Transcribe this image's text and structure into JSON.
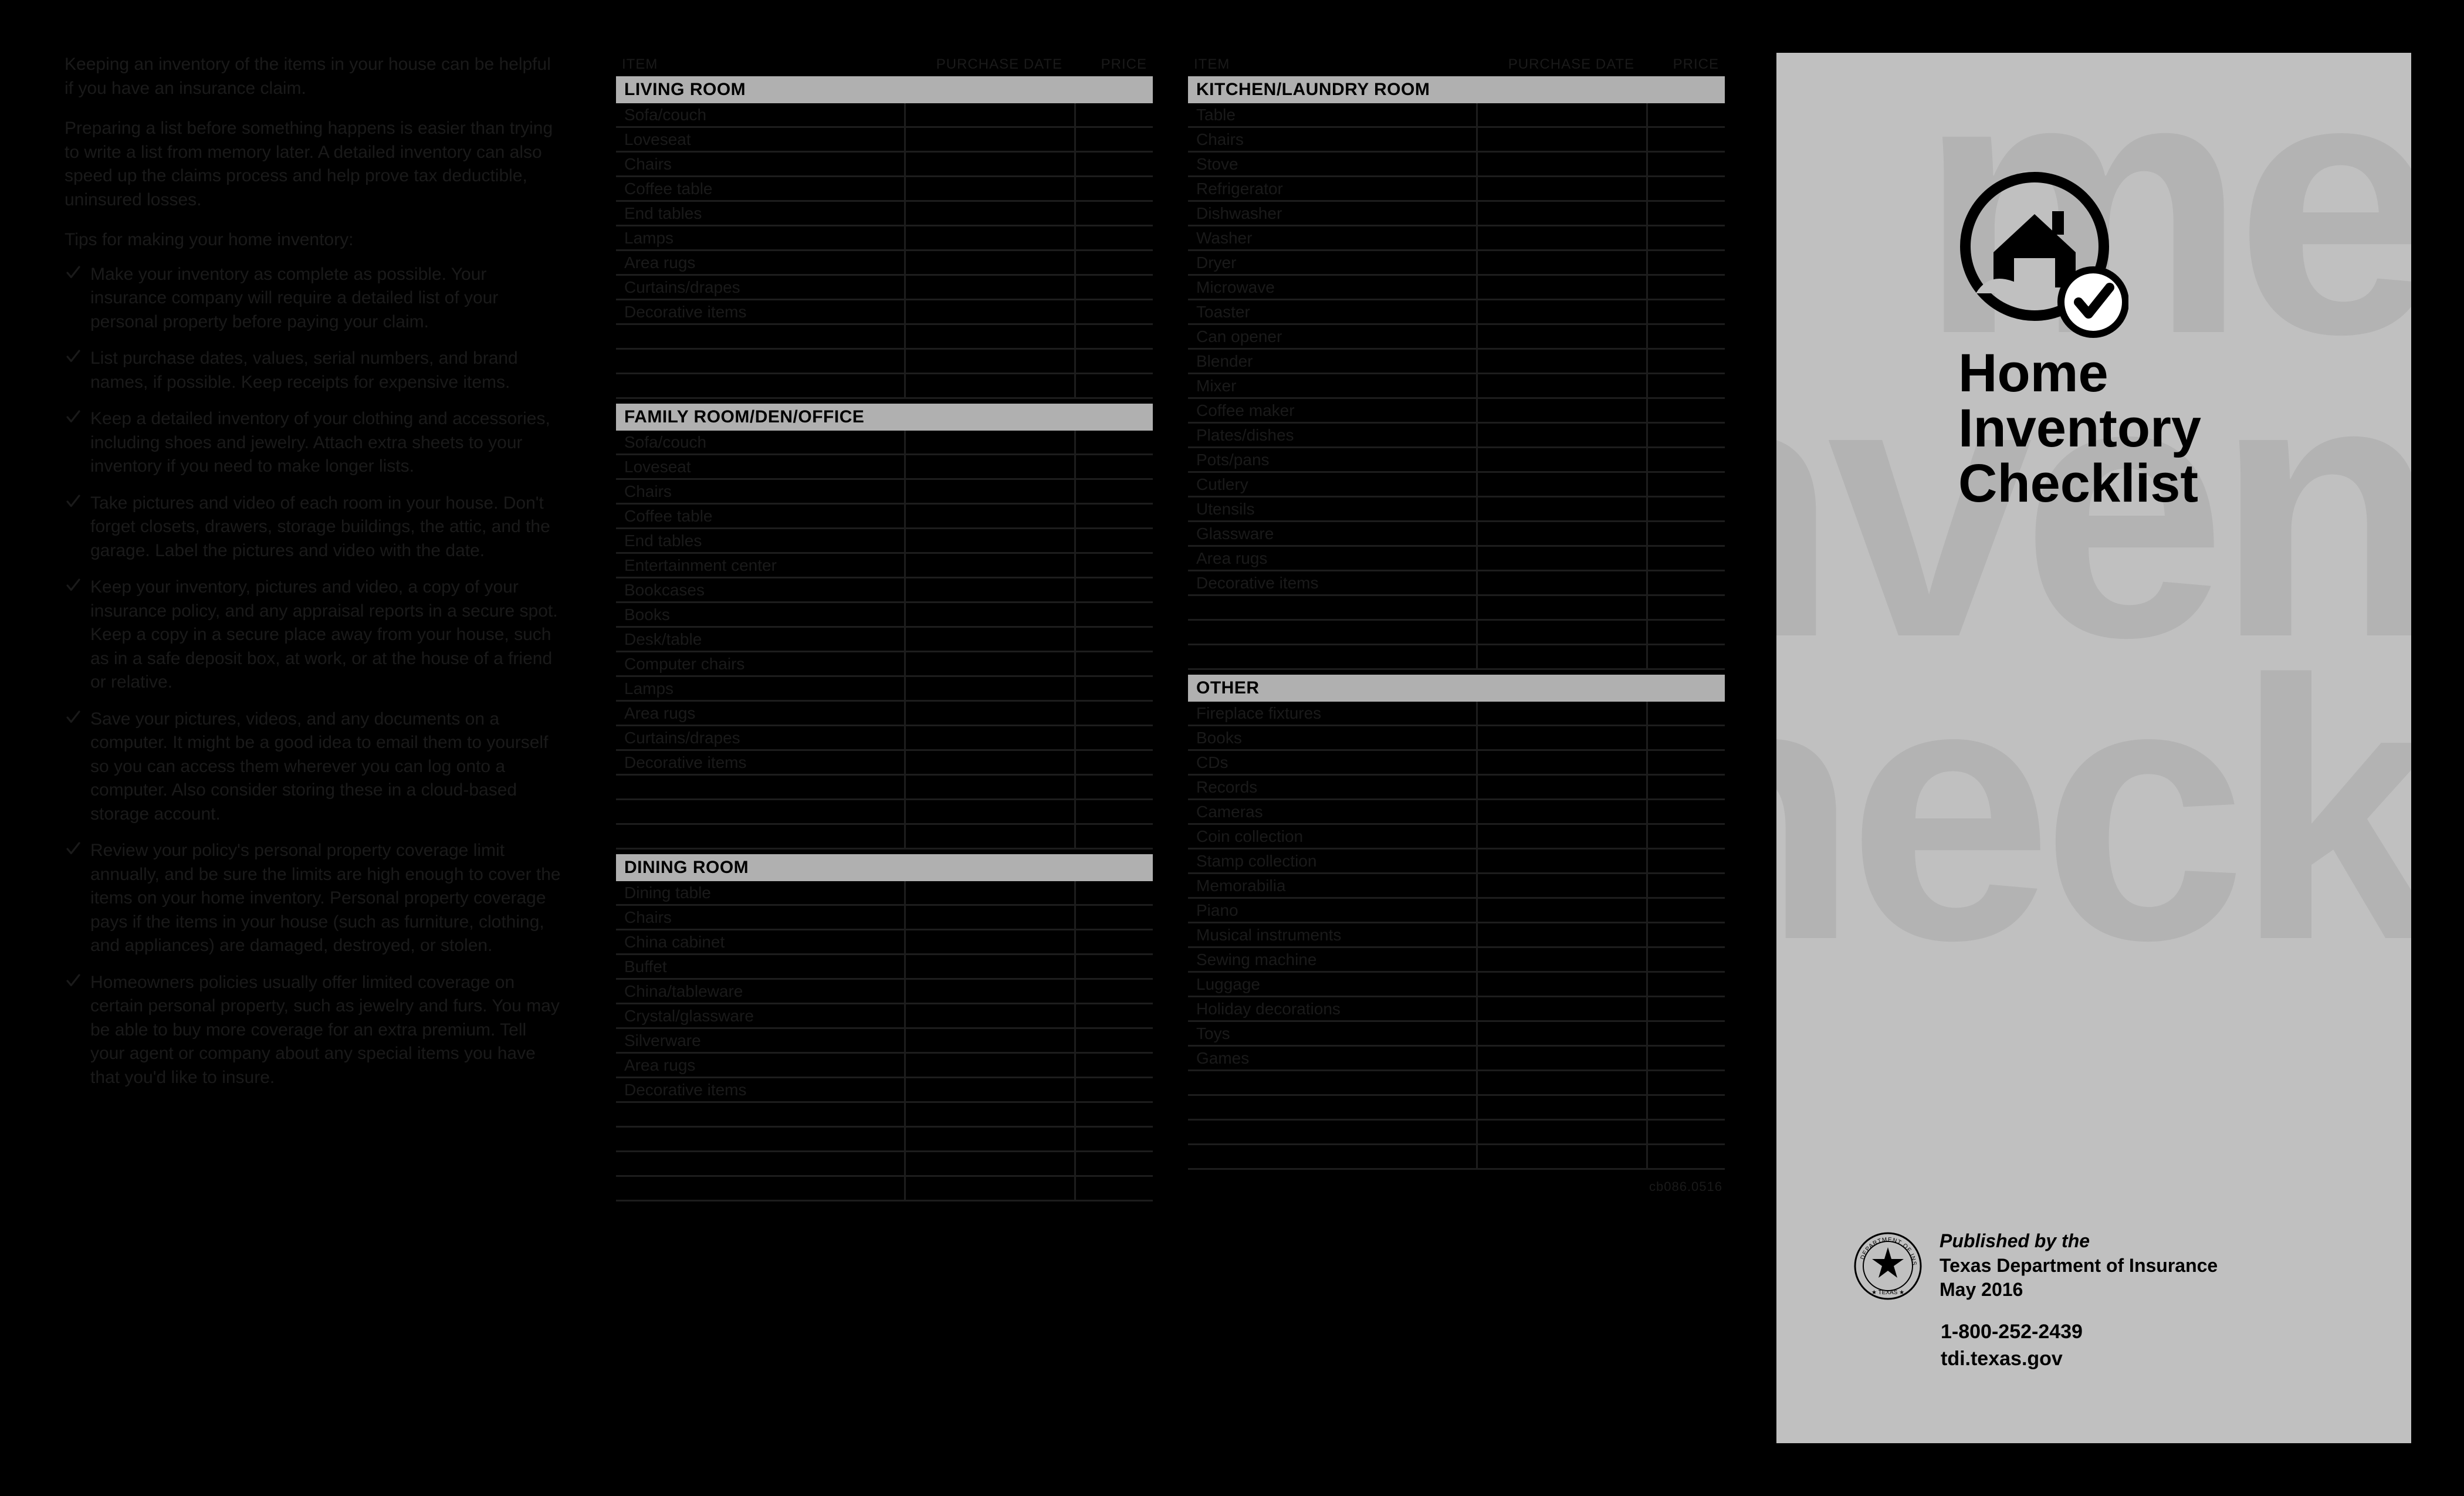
{
  "colors": {
    "page_bg": "#000000",
    "panel_cover_bg": "#c0c0c0",
    "cover_bg_text": "#b3b3b3",
    "section_head_bg": "#b0b0b0",
    "dim_text": "#1a1a1a",
    "row_border": "#1d1d1d"
  },
  "intro": {
    "p1": "Keeping an inventory of the items in your house can be helpful if you have an insurance claim.",
    "p2": "Preparing a list before something happens is easier than trying to write a list from memory later. A detailed inventory can also speed up the claims process and help prove tax deductible, uninsured losses.",
    "tips_heading": "Tips for making your home inventory:",
    "tips": [
      "Make your inventory as complete as possible. Your insurance company will require a detailed list of your personal property before paying your claim.",
      "List purchase dates, values, serial numbers, and brand names, if possible. Keep receipts for expensive items.",
      "Keep a detailed inventory of your clothing and accessories, including shoes and jewelry. Attach extra sheets to your inventory if you need to make longer lists.",
      "Take pictures and video of each room in your house. Don't forget closets, drawers, storage buildings, the attic, and the garage. Label the pictures and video with the date.",
      "Keep your inventory, pictures and video, a copy of your insurance policy, and any appraisal reports in a secure spot. Keep a copy in a secure place away from your house, such as in a safe deposit box, at work, or at the house of a friend or relative.",
      "Save your pictures, videos, and any documents on a computer. It might be a good idea to email them to yourself so you can access them wherever you can log onto a computer. Also consider storing these in a cloud-based storage account.",
      "Review your policy's personal property coverage limit annually, and be sure the limits are high enough to cover the items on your home inventory. Personal property coverage pays if the items in your house (such as furniture, clothing, and appliances) are damaged, destroyed, or stolen.",
      "Homeowners policies usually offer limited coverage on certain personal property, such as jewelry and furs. You may be able to buy more coverage for an extra premium. Tell your agent or company about any special items you have that you'd like to insure."
    ]
  },
  "table_headers": {
    "item": "ITEM",
    "date": "PURCHASE DATE",
    "price": "PRICE"
  },
  "panel2": [
    {
      "title": "LIVING ROOM",
      "items": [
        "Sofa/couch",
        "Loveseat",
        "Chairs",
        "Coffee table",
        "End tables",
        "Lamps",
        "Area rugs",
        "Curtains/drapes",
        "Decorative items"
      ],
      "blank_rows": 3
    },
    {
      "title": "FAMILY ROOM/DEN/OFFICE",
      "items": [
        "Sofa/couch",
        "Loveseat",
        "Chairs",
        "Coffee table",
        "End tables",
        "Entertainment center",
        "Bookcases",
        "Books",
        "Desk/table",
        "Computer chairs",
        "Lamps",
        "Area rugs",
        "Curtains/drapes",
        "Decorative items"
      ],
      "blank_rows": 3
    },
    {
      "title": "DINING ROOM",
      "items": [
        "Dining table",
        "Chairs",
        "China cabinet",
        "Buffet",
        "China/tableware",
        "Crystal/glassware",
        "Silverware",
        "Area rugs",
        "Decorative items"
      ],
      "blank_rows": 4
    }
  ],
  "panel3": [
    {
      "title": "KITCHEN/LAUNDRY ROOM",
      "items": [
        "Table",
        "Chairs",
        "Stove",
        "Refrigerator",
        "Dishwasher",
        "Washer",
        "Dryer",
        "Microwave",
        "Toaster",
        "Can opener",
        "Blender",
        "Mixer",
        "Coffee maker",
        "Plates/dishes",
        "Pots/pans",
        "Cutlery",
        "Utensils",
        "Glassware",
        "Area rugs",
        "Decorative items"
      ],
      "blank_rows": 3
    },
    {
      "title": "OTHER",
      "items": [
        "Fireplace fixtures",
        "Books",
        "CDs",
        "Records",
        "Cameras",
        "Coin collection",
        "Stamp collection",
        "Memorabilia",
        "Piano",
        "Musical instruments",
        "Sewing machine",
        "Luggage",
        "Holiday decorations",
        "Toys",
        "Games"
      ],
      "blank_rows": 4
    }
  ],
  "doc_id": "cb086.0516",
  "cover": {
    "bg_text_l1": "me",
    "bg_text_l2": "Inven",
    "bg_text_l3": "Check",
    "title_l1": "Home",
    "title_l2": "Inventory",
    "title_l3": "Checklist",
    "pub_l1": "Published by the",
    "pub_l2": "Texas Department of Insurance",
    "pub_l3": "May 2016",
    "phone": "1-800-252-2439",
    "url": "tdi.texas.gov"
  }
}
